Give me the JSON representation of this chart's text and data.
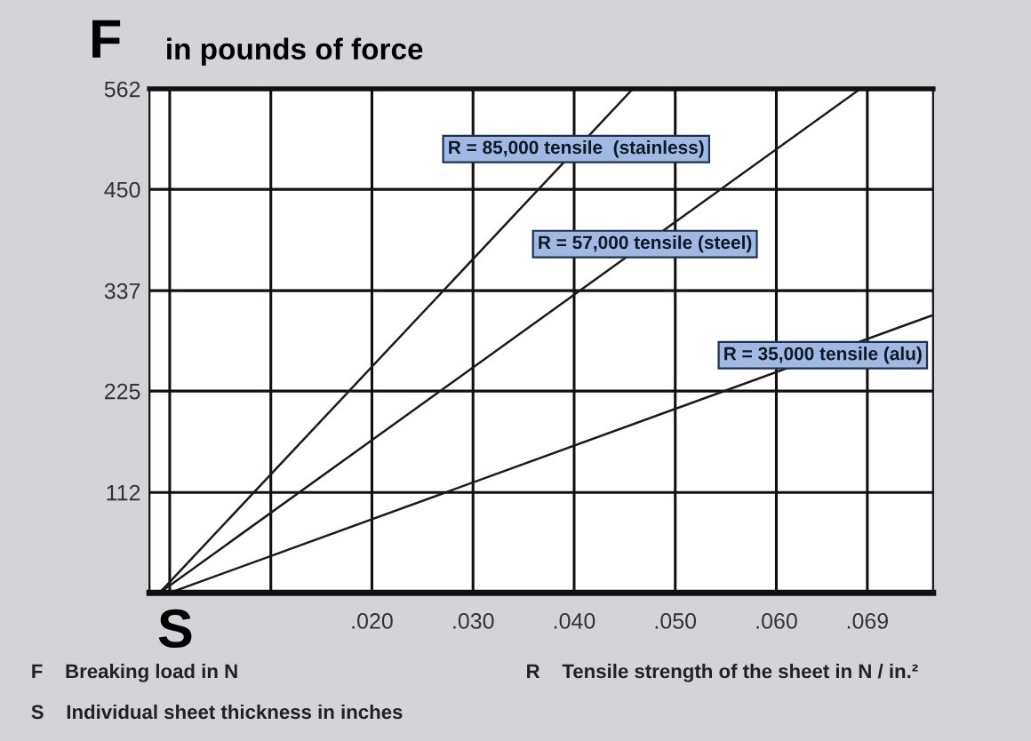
{
  "chart_data": {
    "type": "line",
    "ylabel": "F",
    "title": "in pounds of force",
    "xlabel": "S",
    "series": [
      {
        "color": "#1a1a1a",
        "x": [
          -0.001,
          0.0458
        ],
        "values": [
          0,
          562
        ]
      },
      {
        "color": "#1a1a1a",
        "x": [
          -0.001,
          0.0683
        ],
        "values": [
          0,
          562
        ]
      },
      {
        "color": "#1a1a1a",
        "x": [
          0,
          0.0753
        ],
        "values": [
          0,
          309
        ]
      }
    ],
    "xlim": [
      -0.002,
      0.0755
    ],
    "ylim": [
      0,
      562
    ],
    "xticks": [
      {
        "value": 0,
        "label": null
      },
      {
        "value": 0.01,
        "label": null
      },
      {
        "value": 0.02,
        "label": ".020"
      },
      {
        "value": 0.03,
        "label": ".030"
      },
      {
        "value": 0.04,
        "label": ".040"
      },
      {
        "value": 0.05,
        "label": ".050"
      },
      {
        "value": 0.06,
        "label": ".060"
      },
      {
        "value": 0.069,
        "label": ".069"
      }
    ],
    "yticks": [
      112,
      225,
      337,
      450,
      562
    ],
    "grid": true,
    "marker": "none",
    "line_style": "solid",
    "annotations": [
      {
        "text": "R = 85,000 tensile  (stainless)",
        "x": 0.0402,
        "y": 495
      },
      {
        "text": "R = 57,000 tensile (steel)",
        "x": 0.047,
        "y": 389
      },
      {
        "text": "R = 35,000 tensile (alu)",
        "x": 0.0646,
        "y": 265
      },
      "F    Breaking load in N",
      "S    Individual sheet thickness in inches",
      "R    Tensile strength of the sheet in N / in.²"
    ]
  }
}
